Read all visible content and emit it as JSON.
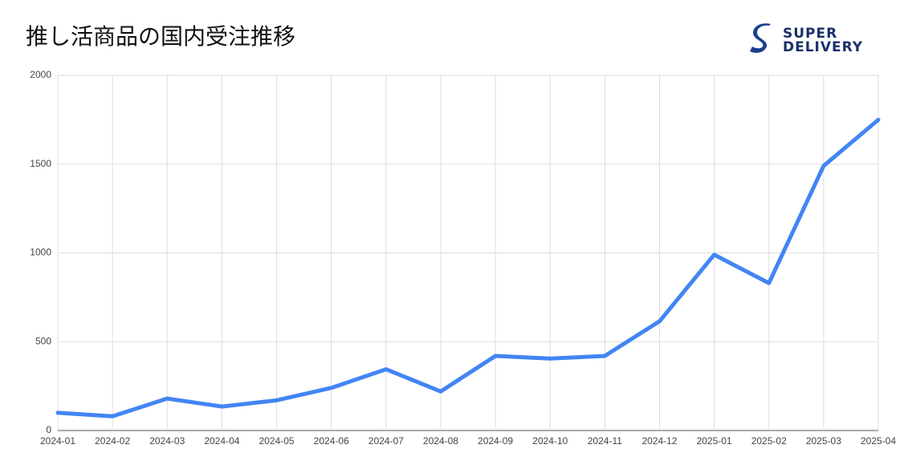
{
  "chart_data": {
    "type": "line",
    "title": "推し活商品の国内受注推移",
    "logo": [
      "SUPER",
      "DELIVERY"
    ],
    "categories": [
      "2024-01",
      "2024-02",
      "2024-03",
      "2024-04",
      "2024-05",
      "2024-06",
      "2024-07",
      "2024-08",
      "2024-09",
      "2024-10",
      "2024-11",
      "2024-12",
      "2025-01",
      "2025-02",
      "2025-03",
      "2025-04"
    ],
    "values": [
      100,
      80,
      180,
      135,
      170,
      240,
      345,
      220,
      420,
      405,
      420,
      615,
      990,
      830,
      1490,
      1750
    ],
    "color": "#4285f4",
    "ylim": [
      0,
      2000
    ],
    "yticks": [
      0,
      500,
      1000,
      1500,
      2000
    ],
    "grid": true
  }
}
